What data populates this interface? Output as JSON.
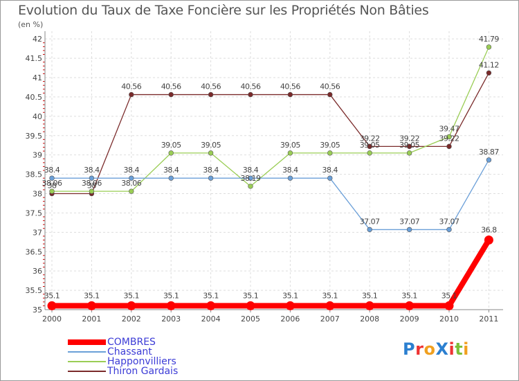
{
  "title": "Evolution du Taux de Taxe Foncière sur les Propriétés Non Bâties",
  "subtitle": "(en %)",
  "logo_text": "ProXiti",
  "chart_data": {
    "type": "line",
    "title": "Evolution du Taux de Taxe Foncière sur les Propriétés Non Bâties",
    "ylabel": "(en %)",
    "xlabel": "",
    "x": [
      "2000",
      "2001",
      "2002",
      "2003",
      "2004",
      "2005",
      "2006",
      "2007",
      "2008",
      "2009",
      "2010",
      "2011"
    ],
    "ylim": [
      35,
      42.2
    ],
    "y_ticks": [
      "35",
      "35.5",
      "36",
      "36.5",
      "37",
      "37.5",
      "38",
      "38.5",
      "39",
      "39.5",
      "40",
      "40.5",
      "41",
      "41.5",
      "42"
    ],
    "grid": true,
    "series": [
      {
        "name": "COMBRES",
        "color": "#ff0000",
        "values": [
          35.1,
          35.1,
          35.1,
          35.1,
          35.1,
          35.1,
          35.1,
          35.1,
          35.1,
          35.1,
          35.1,
          36.8
        ],
        "labels": [
          "35.1",
          "35.1",
          "35.1",
          "35.1",
          "35.1",
          "35.1",
          "35.1",
          "35.1",
          "35.1",
          "35.1",
          "35.1",
          "36.8"
        ]
      },
      {
        "name": "Chassant",
        "color": "#6a9fd8",
        "values": [
          38.4,
          38.4,
          38.4,
          38.4,
          38.4,
          38.4,
          38.4,
          38.4,
          37.07,
          37.07,
          37.07,
          38.87
        ],
        "labels": [
          "38.4",
          "38.4",
          "38.4",
          "38.4",
          "38.4",
          "38.4",
          "38.4",
          "38.4",
          "37.07",
          "37.07",
          "37.07",
          "38.87"
        ]
      },
      {
        "name": "Happonvilliers",
        "color": "#9acd55",
        "values": [
          38.06,
          38.06,
          38.06,
          39.05,
          39.05,
          38.19,
          39.05,
          39.05,
          39.05,
          39.05,
          39.47,
          41.79
        ],
        "labels": [
          "38.06",
          "38.06",
          "38.06",
          "39.05",
          "39.05",
          "38.19",
          "39.05",
          "39.05",
          "39.05",
          "39.05",
          "39.47",
          "41.79"
        ]
      },
      {
        "name": "Thiron Gardais",
        "color": "#7a2a2a",
        "values": [
          38,
          38,
          40.56,
          40.56,
          40.56,
          40.56,
          40.56,
          40.56,
          39.22,
          39.22,
          39.22,
          41.12
        ],
        "labels": [
          "38",
          "38",
          "40.56",
          "40.56",
          "40.56",
          "40.56",
          "40.56",
          "40.56",
          "39.22",
          "39.22",
          "39.22",
          "41.12"
        ]
      }
    ],
    "legend": [
      "COMBRES",
      "Chassant",
      "Happonvilliers",
      "Thiron Gardais"
    ]
  }
}
